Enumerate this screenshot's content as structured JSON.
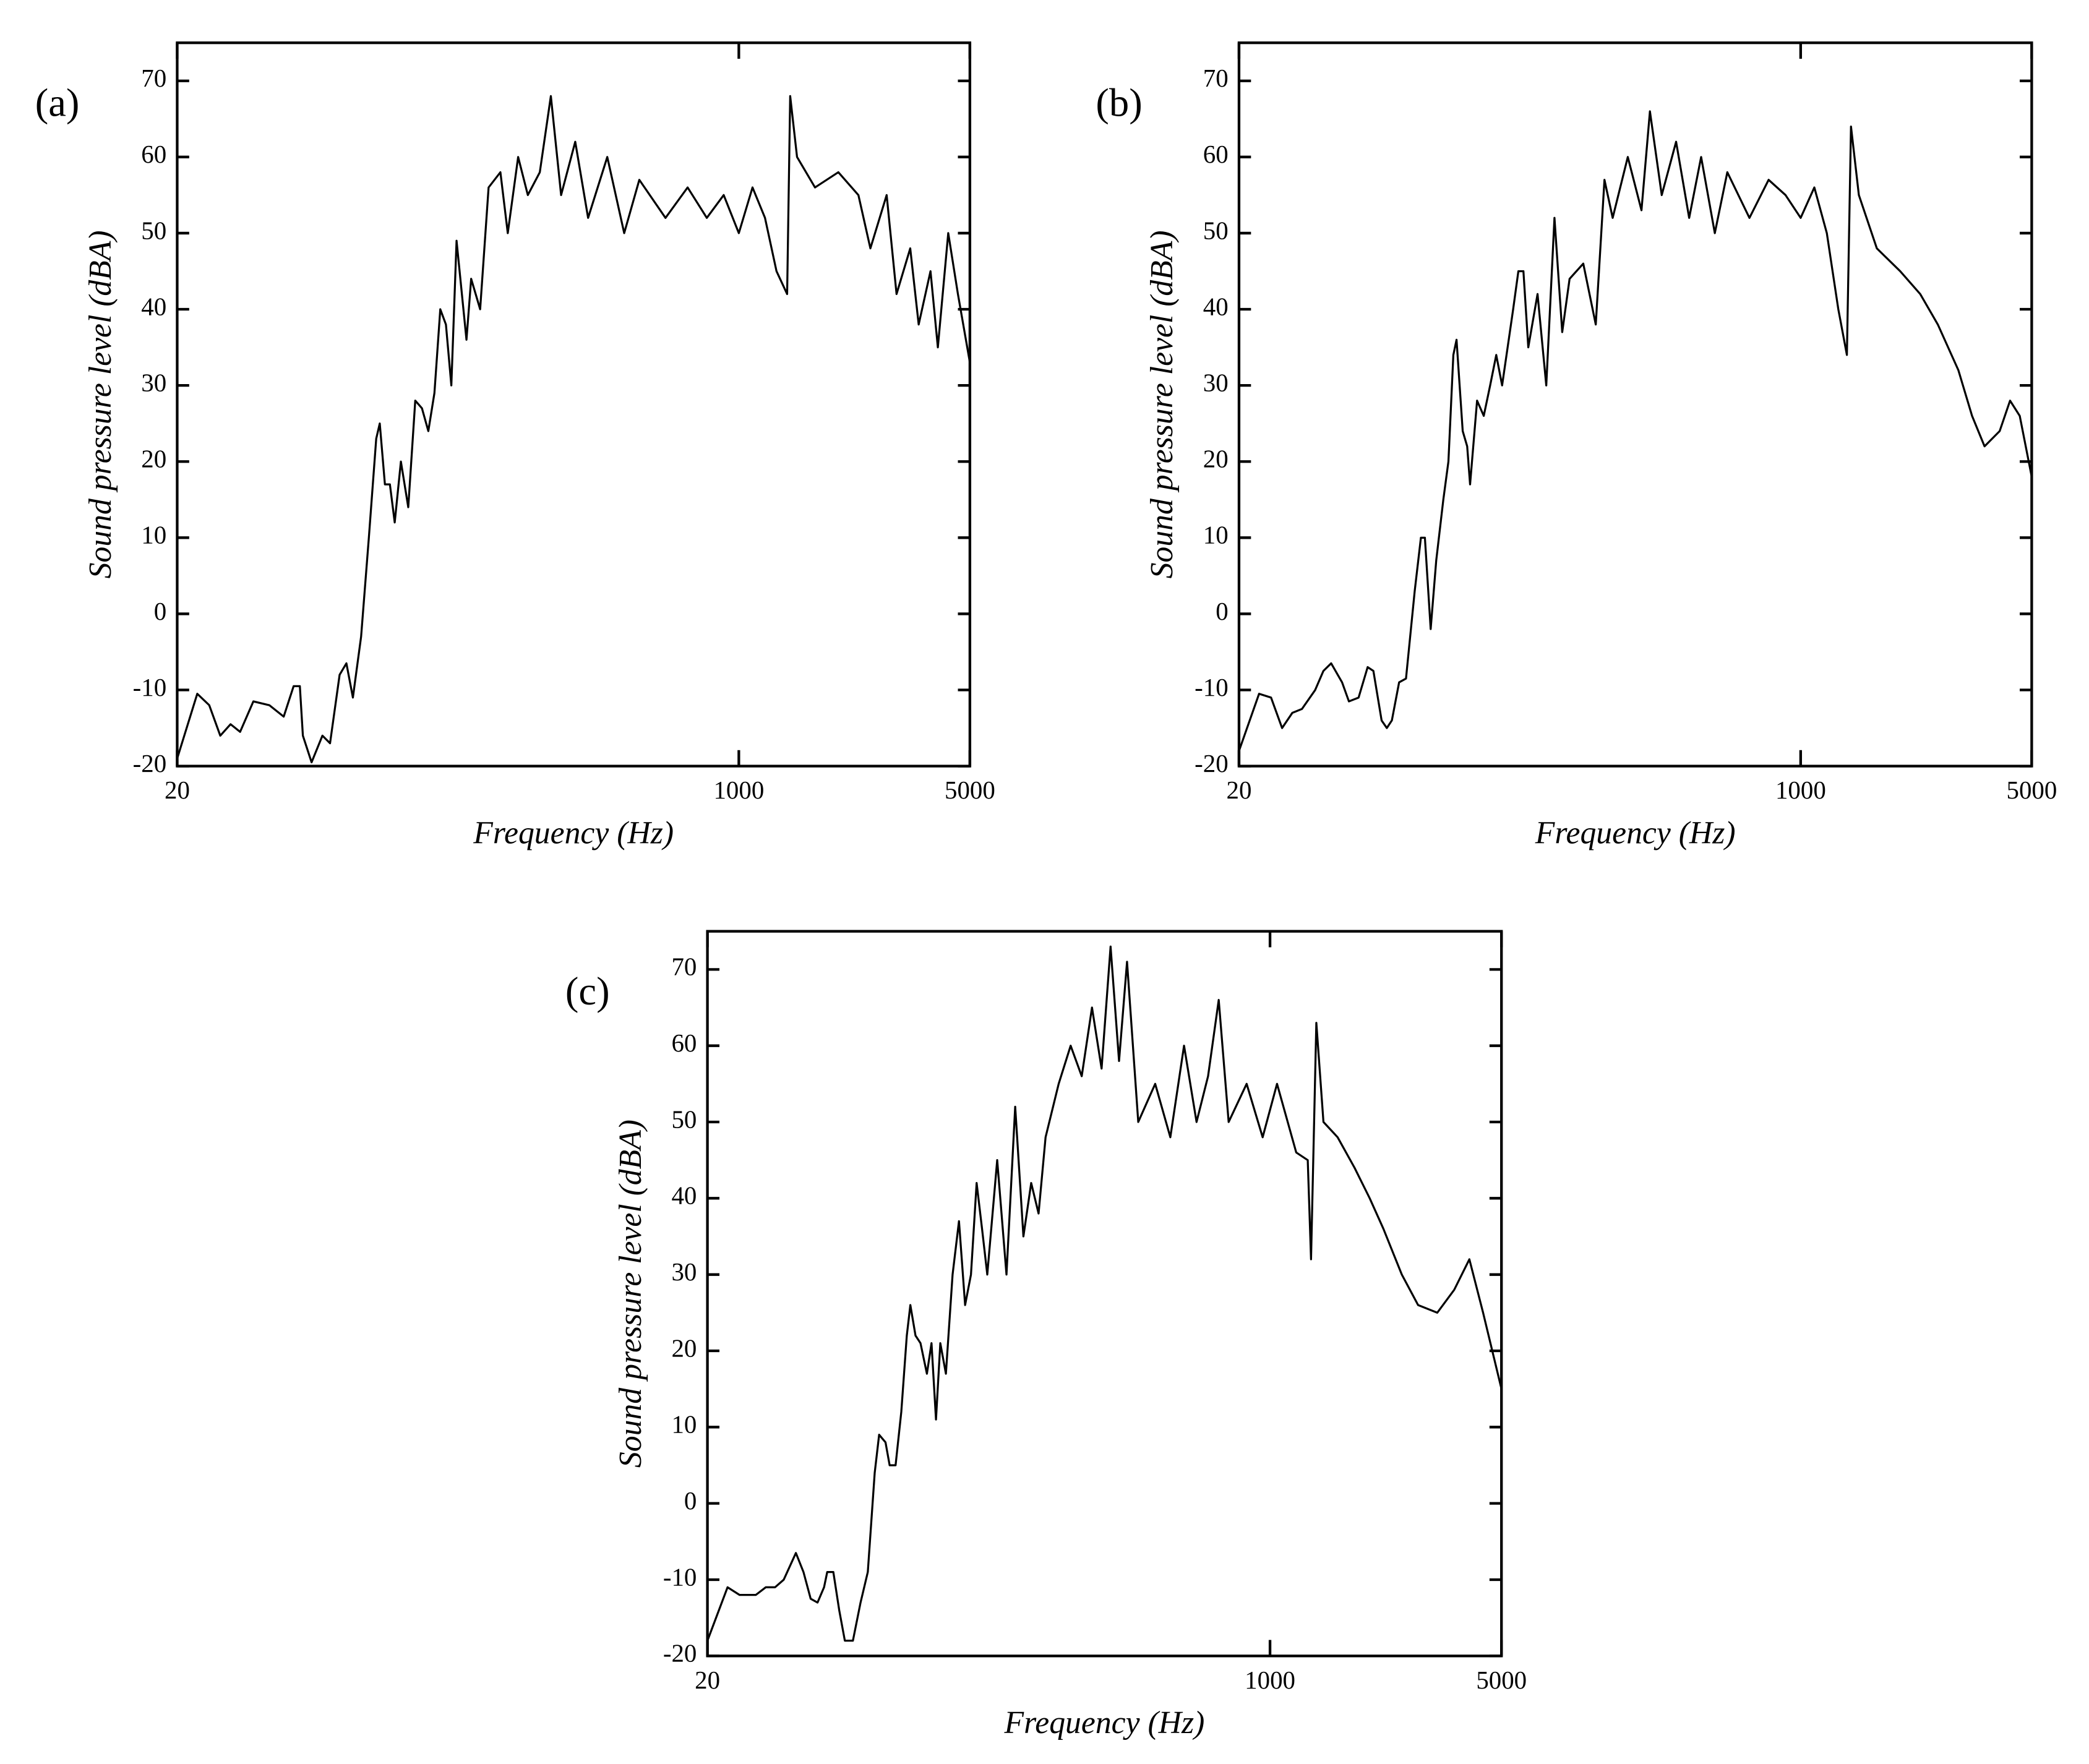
{
  "chart_data": [
    {
      "type": "line",
      "panel_label": "(a)",
      "xlabel": "Frequency (Hz)",
      "ylabel": "Sound pressure level (dBA)",
      "color": "#000000",
      "xscale": "log",
      "xlim": [
        20,
        5000
      ],
      "ylim": [
        -20,
        75
      ],
      "xticks": [
        20,
        1000,
        5000
      ],
      "yticks": [
        -20,
        -10,
        0,
        10,
        20,
        30,
        40,
        50,
        60,
        70
      ],
      "x": [
        20,
        23,
        25,
        27,
        29,
        31,
        34,
        38,
        42,
        45,
        47,
        48,
        51,
        55,
        58,
        62,
        65,
        68,
        72,
        76,
        80,
        82,
        85,
        88,
        91,
        95,
        100,
        105,
        110,
        115,
        120,
        125,
        130,
        135,
        140,
        150,
        155,
        165,
        175,
        190,
        200,
        215,
        230,
        250,
        270,
        290,
        320,
        350,
        400,
        450,
        500,
        600,
        700,
        800,
        900,
        1000,
        1100,
        1200,
        1300,
        1400,
        1430,
        1500,
        1700,
        2000,
        2300,
        2500,
        2800,
        3000,
        3300,
        3500,
        3800,
        4000,
        4300,
        4600,
        5000
      ],
      "values": [
        -19,
        -10.5,
        -12,
        -16,
        -14.5,
        -15.5,
        -11.5,
        -12,
        -13.5,
        -9.5,
        -9.5,
        -16,
        -19.5,
        -16,
        -17,
        -8,
        -6.5,
        -11,
        -3,
        10,
        23,
        25,
        17,
        17,
        12,
        20,
        14,
        28,
        27,
        24,
        29,
        40,
        38,
        30,
        49,
        36,
        44,
        40,
        56,
        58,
        50,
        60,
        55,
        58,
        68,
        55,
        62,
        52,
        60,
        50,
        57,
        52,
        56,
        52,
        55,
        50,
        56,
        52,
        45,
        42,
        68,
        60,
        56,
        58,
        55,
        48,
        55,
        42,
        48,
        38,
        45,
        35,
        50,
        42,
        33
      ]
    },
    {
      "type": "line",
      "panel_label": "(b)",
      "xlabel": "Frequency (Hz)",
      "ylabel": "Sound pressure level (dBA)",
      "color": "#000000",
      "xscale": "log",
      "xlim": [
        20,
        5000
      ],
      "ylim": [
        -20,
        75
      ],
      "xticks": [
        20,
        1000,
        5000
      ],
      "yticks": [
        -20,
        -10,
        0,
        10,
        20,
        30,
        40,
        50,
        60,
        70
      ],
      "x": [
        20,
        23,
        25,
        27,
        29,
        31,
        34,
        36,
        38,
        41,
        43,
        46,
        49,
        51,
        54,
        56,
        58,
        61,
        64,
        68,
        71,
        73,
        76,
        79,
        83,
        86,
        89,
        91,
        95,
        98,
        100,
        105,
        110,
        115,
        120,
        125,
        135,
        140,
        145,
        150,
        160,
        170,
        180,
        190,
        200,
        220,
        240,
        255,
        270,
        300,
        330,
        350,
        380,
        420,
        460,
        500,
        550,
        600,
        700,
        800,
        900,
        1000,
        1100,
        1200,
        1300,
        1380,
        1420,
        1500,
        1700,
        2000,
        2300,
        2600,
        3000,
        3300,
        3600,
        4000,
        4300,
        4600,
        5000
      ],
      "values": [
        -18,
        -10.5,
        -11,
        -15,
        -13,
        -12.5,
        -10,
        -7.5,
        -6.5,
        -9,
        -11.5,
        -11,
        -7,
        -7.5,
        -14,
        -15,
        -14,
        -9,
        -8.5,
        3,
        10,
        10,
        -2,
        7,
        15,
        20,
        34,
        36,
        24,
        22,
        17,
        28,
        26,
        30,
        34,
        30,
        40,
        45,
        45,
        35,
        42,
        30,
        52,
        37,
        44,
        46,
        38,
        57,
        52,
        60,
        53,
        66,
        55,
        62,
        52,
        60,
        50,
        58,
        52,
        57,
        55,
        52,
        56,
        50,
        40,
        34,
        64,
        55,
        48,
        45,
        42,
        38,
        32,
        26,
        22,
        24,
        28,
        26,
        18
      ]
    },
    {
      "type": "line",
      "panel_label": "(c)",
      "xlabel": "Frequency (Hz)",
      "ylabel": "Sound pressure level (dBA)",
      "color": "#000000",
      "xscale": "log",
      "xlim": [
        20,
        5000
      ],
      "ylim": [
        -20,
        75
      ],
      "xticks": [
        20,
        1000,
        5000
      ],
      "yticks": [
        -20,
        -10,
        0,
        10,
        20,
        30,
        40,
        50,
        60,
        70
      ],
      "x": [
        20,
        23,
        25,
        28,
        30,
        32,
        34,
        37,
        39,
        41,
        43,
        45,
        46,
        48,
        50,
        52,
        55,
        58,
        61,
        64,
        66,
        69,
        71,
        74,
        77,
        80,
        82,
        85,
        88,
        92,
        95,
        98,
        101,
        105,
        110,
        115,
        120,
        125,
        130,
        135,
        140,
        150,
        160,
        170,
        180,
        190,
        200,
        210,
        230,
        250,
        270,
        290,
        310,
        330,
        350,
        370,
        400,
        450,
        500,
        550,
        600,
        650,
        700,
        750,
        850,
        950,
        1050,
        1200,
        1300,
        1330,
        1380,
        1450,
        1600,
        1800,
        2000,
        2200,
        2500,
        2800,
        3200,
        3600,
        4000,
        4400,
        5000
      ],
      "values": [
        -18,
        -11,
        -12,
        -12,
        -11,
        -11,
        -10,
        -6.5,
        -9,
        -12.5,
        -13,
        -11,
        -9,
        -9,
        -14,
        -18,
        -18,
        -13,
        -9,
        4,
        9,
        8,
        5,
        5,
        12,
        22,
        26,
        22,
        21,
        17,
        21,
        11,
        21,
        17,
        30,
        37,
        26,
        30,
        42,
        36,
        30,
        45,
        30,
        52,
        35,
        42,
        38,
        48,
        55,
        60,
        56,
        65,
        57,
        73,
        58,
        71,
        50,
        55,
        48,
        60,
        50,
        56,
        66,
        50,
        55,
        48,
        55,
        46,
        45,
        32,
        63,
        50,
        48,
        44,
        40,
        36,
        30,
        26,
        25,
        28,
        32,
        25,
        15
      ]
    }
  ]
}
